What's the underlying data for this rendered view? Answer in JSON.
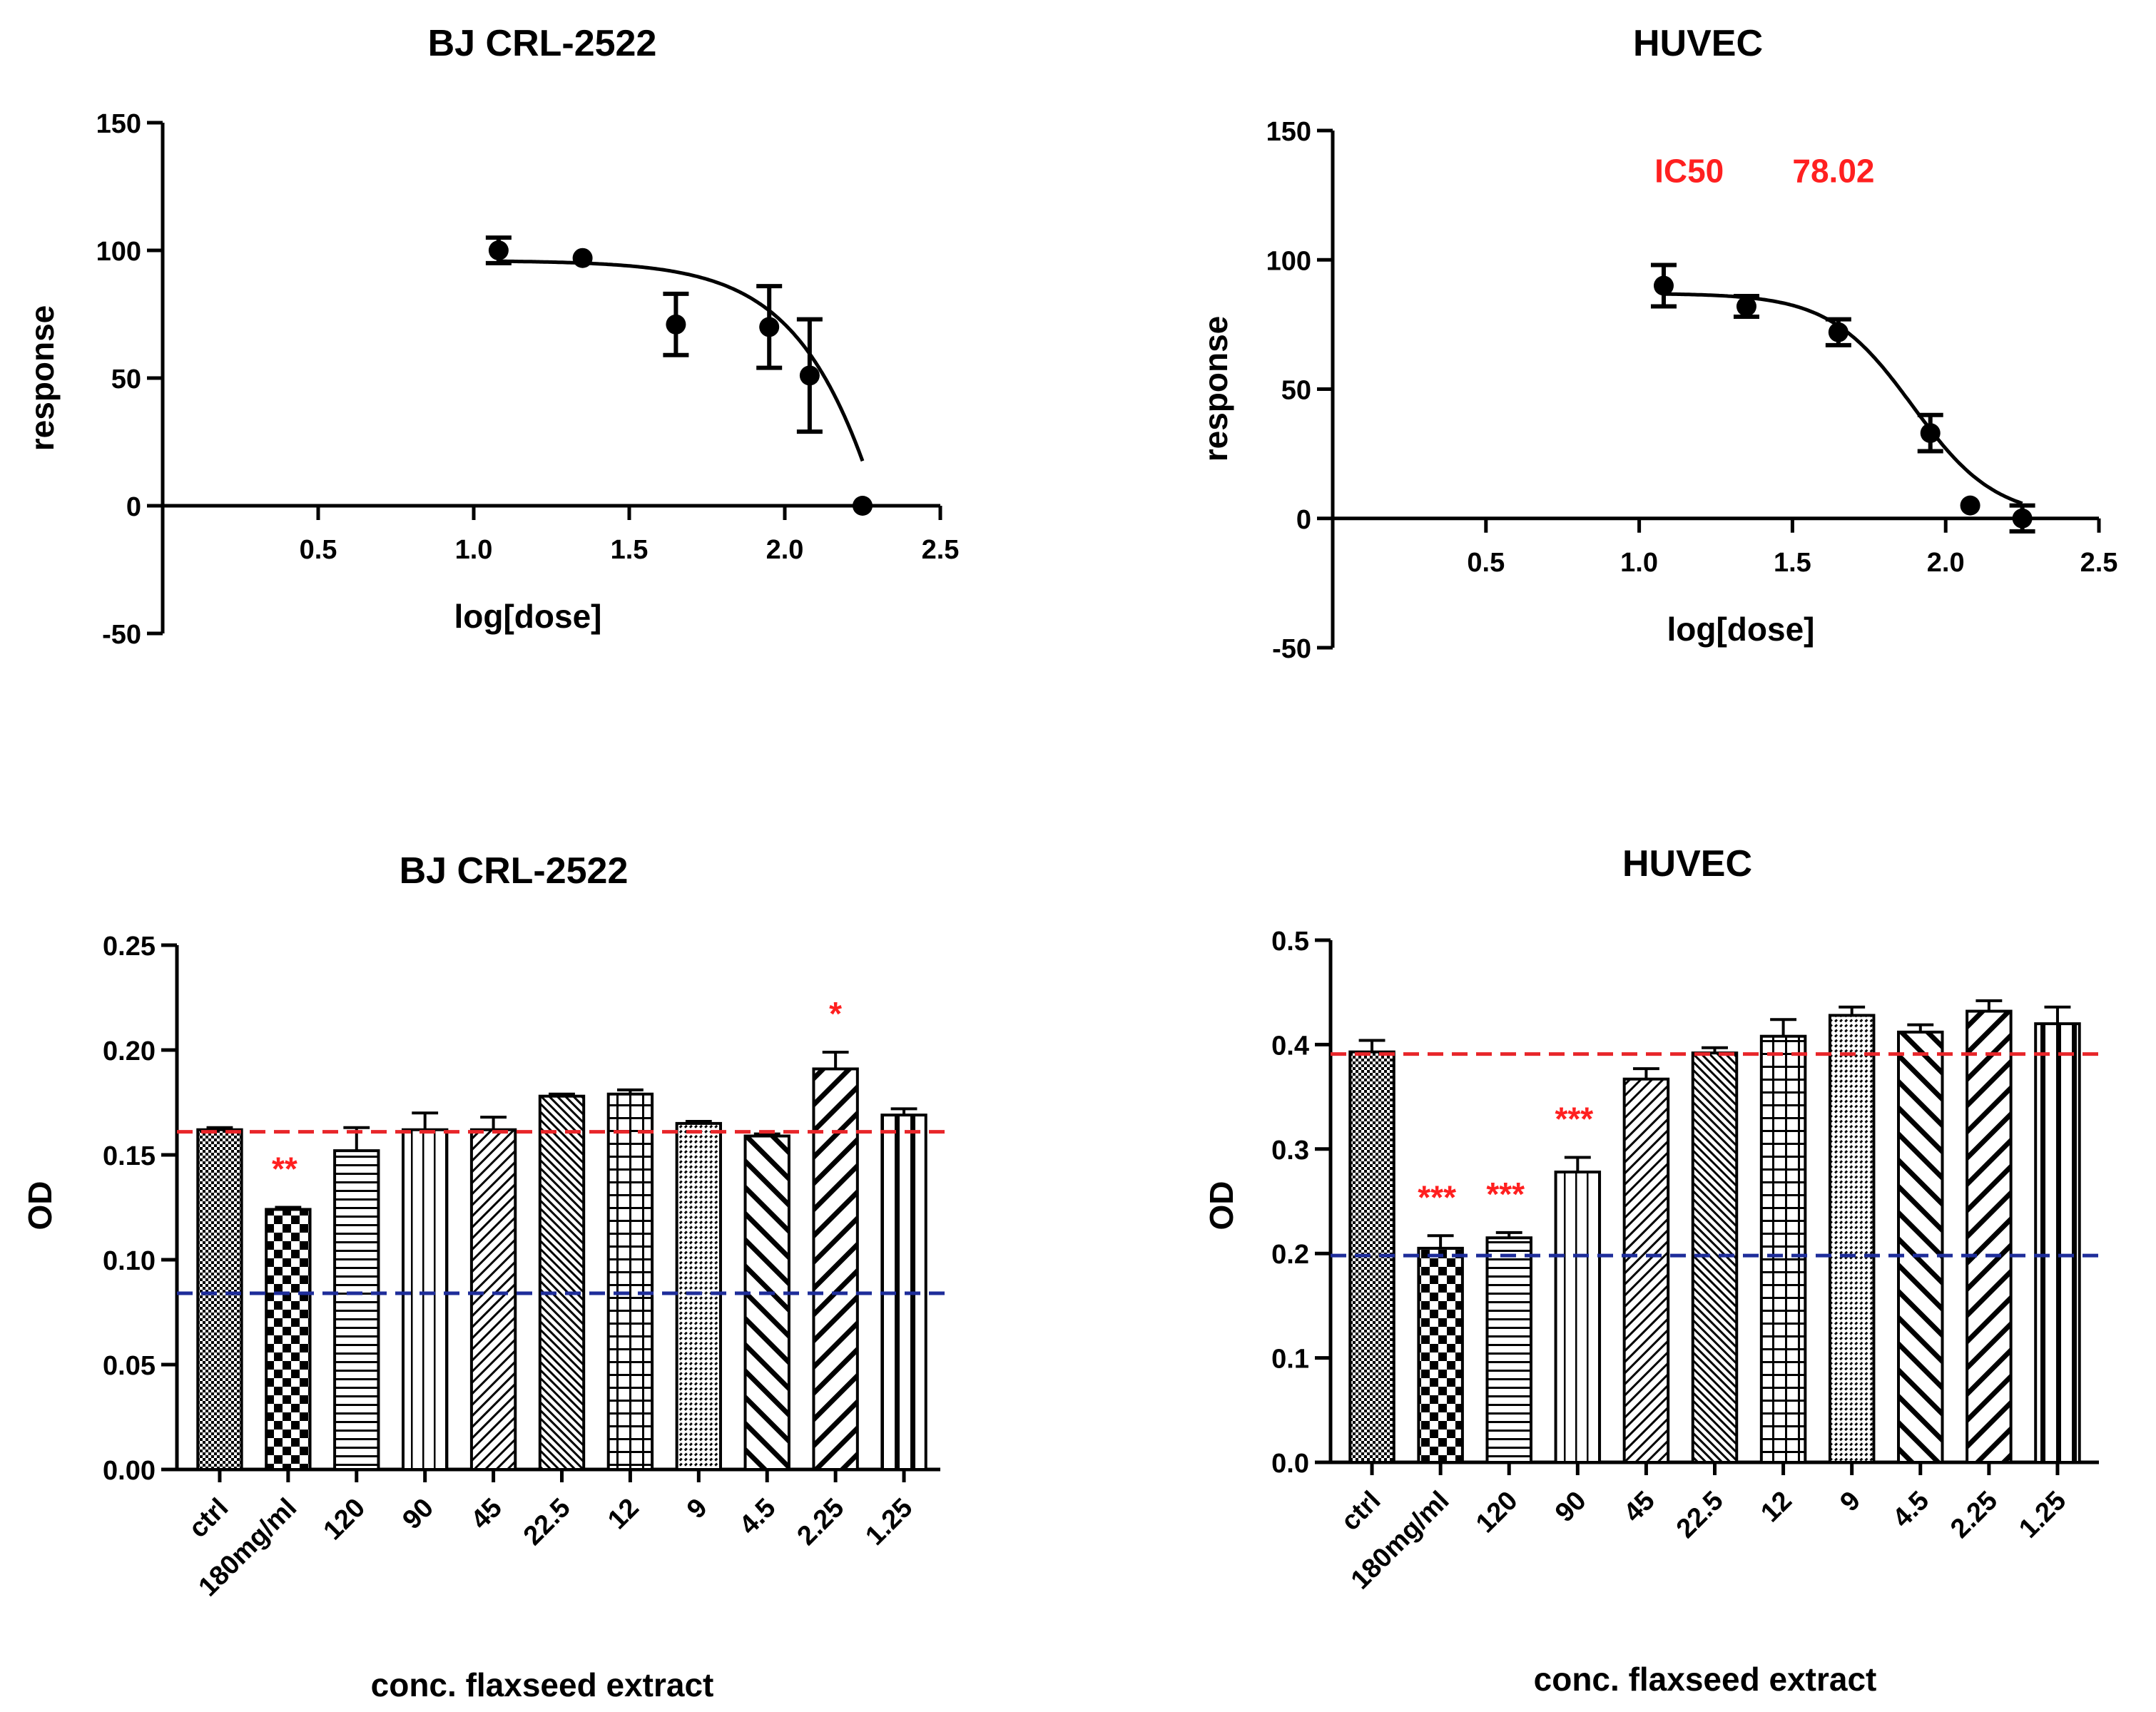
{
  "colors": {
    "axis": "#000000",
    "annotation_red": "#ff2020",
    "ref_red": "#e8262a",
    "ref_blue": "#1e2d9a"
  },
  "chart_data": [
    {
      "id": "dose_bj",
      "type": "scatter",
      "title": "BJ CRL-2522",
      "xlabel": "log[dose]",
      "ylabel": "response",
      "xlim": [
        0,
        2.5
      ],
      "ylim": [
        -50,
        150
      ],
      "x_ticks": [
        "0.5",
        "1.0",
        "1.5",
        "2.0",
        "2.5"
      ],
      "y_ticks": [
        "-50",
        "0",
        "50",
        "100",
        "150"
      ],
      "points": [
        {
          "x": 1.08,
          "y": 100,
          "err": 5
        },
        {
          "x": 1.35,
          "y": 97,
          "err": 0
        },
        {
          "x": 1.65,
          "y": 71,
          "err": 12
        },
        {
          "x": 1.95,
          "y": 70,
          "err": 16
        },
        {
          "x": 2.08,
          "y": 51,
          "err": 22
        },
        {
          "x": 2.25,
          "y": 0,
          "err": 0
        }
      ],
      "fit": {
        "top": 96,
        "bottom": -400,
        "logIC50": 2.58,
        "hill": -2.2
      },
      "annotations": []
    },
    {
      "id": "dose_huvec",
      "type": "scatter",
      "title": "HUVEC",
      "xlabel": "log[dose]",
      "ylabel": "response",
      "xlim": [
        0,
        2.5
      ],
      "ylim": [
        -50,
        150
      ],
      "x_ticks": [
        "0.5",
        "1.0",
        "1.5",
        "2.0",
        "2.5"
      ],
      "y_ticks": [
        "-50",
        "0",
        "50",
        "100",
        "150"
      ],
      "points": [
        {
          "x": 1.08,
          "y": 90,
          "err": 8
        },
        {
          "x": 1.35,
          "y": 82,
          "err": 4
        },
        {
          "x": 1.65,
          "y": 72,
          "err": 5
        },
        {
          "x": 1.95,
          "y": 33,
          "err": 7
        },
        {
          "x": 2.08,
          "y": 5,
          "err": 0
        },
        {
          "x": 2.25,
          "y": 0,
          "err": 5
        }
      ],
      "fit": {
        "top": 87,
        "bottom": 0,
        "logIC50": 1.892,
        "hill": -3.2
      },
      "annotations": [
        {
          "text": "IC50",
          "x": 1.05,
          "y": 130,
          "color": "#ff2020"
        },
        {
          "text": "78.02",
          "x": 1.5,
          "y": 130,
          "color": "#ff2020"
        }
      ]
    },
    {
      "id": "od_bj",
      "type": "bar",
      "title": "BJ CRL-2522",
      "xlabel": "conc. flaxseed extract",
      "ylabel": "OD",
      "ylim": [
        0,
        0.25
      ],
      "y_ticks": [
        "0.00",
        "0.05",
        "0.10",
        "0.15",
        "0.20",
        "0.25"
      ],
      "categories": [
        "ctrl",
        "180mg/ml",
        "120",
        "90",
        "45",
        "22.5",
        "12",
        "9",
        "4.5",
        "2.25",
        "1.25"
      ],
      "values": [
        0.162,
        0.124,
        0.152,
        0.162,
        0.162,
        0.178,
        0.179,
        0.165,
        0.159,
        0.191,
        0.169
      ],
      "errors": [
        0.001,
        0.001,
        0.011,
        0.008,
        0.006,
        0.001,
        0.002,
        0.001,
        0.001,
        0.008,
        0.003
      ],
      "patterns": [
        "fine-check",
        "checker",
        "hlines",
        "vlines",
        "diag-right",
        "diag-fine",
        "grid",
        "diag-dots",
        "diag-left",
        "diag-bold",
        "vbars"
      ],
      "significance": [
        "",
        "**",
        "",
        "",
        "",
        "",
        "",
        "",
        "",
        "*",
        ""
      ],
      "ref_lines": [
        {
          "value": 0.161,
          "color": "#e8262a"
        },
        {
          "value": 0.084,
          "color": "#1e2d9a"
        }
      ]
    },
    {
      "id": "od_huvec",
      "type": "bar",
      "title": "HUVEC",
      "xlabel": "conc. flaxseed extract",
      "ylabel": "OD",
      "ylim": [
        0,
        0.5
      ],
      "y_ticks": [
        "0.0",
        "0.1",
        "0.2",
        "0.3",
        "0.4",
        "0.5"
      ],
      "categories": [
        "ctrl",
        "180mg/ml",
        "120",
        "90",
        "45",
        "22.5",
        "12",
        "9",
        "4.5",
        "2.25",
        "1.25"
      ],
      "values": [
        0.393,
        0.205,
        0.215,
        0.278,
        0.367,
        0.392,
        0.408,
        0.428,
        0.412,
        0.432,
        0.42
      ],
      "errors": [
        0.011,
        0.012,
        0.005,
        0.014,
        0.01,
        0.005,
        0.016,
        0.008,
        0.007,
        0.01,
        0.016
      ],
      "patterns": [
        "fine-check",
        "checker",
        "hlines",
        "vlines",
        "diag-right",
        "diag-fine",
        "grid",
        "diag-dots",
        "diag-left",
        "diag-bold",
        "vbars"
      ],
      "significance": [
        "",
        "***",
        "***",
        "***",
        "",
        "",
        "",
        "",
        "",
        "",
        ""
      ],
      "ref_lines": [
        {
          "value": 0.391,
          "color": "#e8262a"
        },
        {
          "value": 0.198,
          "color": "#1e2d9a"
        }
      ]
    }
  ]
}
